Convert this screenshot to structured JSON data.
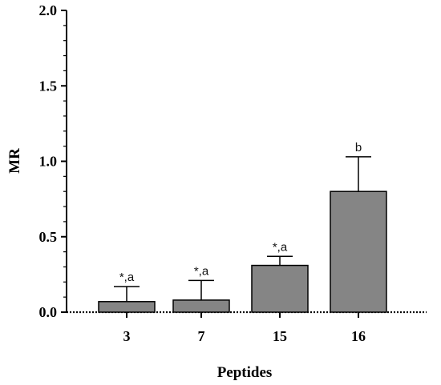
{
  "chart_data": {
    "type": "bar",
    "title": "",
    "xlabel": "Peptides",
    "ylabel": "MR",
    "ylim": [
      0,
      2.0
    ],
    "yticks": [
      0.0,
      0.5,
      1.0,
      1.5,
      2.0
    ],
    "ytick_labels": [
      "0.0",
      "0.5",
      "1.0",
      "1.5",
      "2.0"
    ],
    "categories": [
      "3",
      "7",
      "15",
      "16"
    ],
    "values": [
      0.07,
      0.08,
      0.31,
      0.8
    ],
    "error_upper": [
      0.1,
      0.13,
      0.06,
      0.23
    ],
    "annotations": [
      "*,a",
      "*,a",
      "*,a",
      "b"
    ],
    "bar_color": "#858585",
    "grid": false,
    "legend": "none"
  }
}
